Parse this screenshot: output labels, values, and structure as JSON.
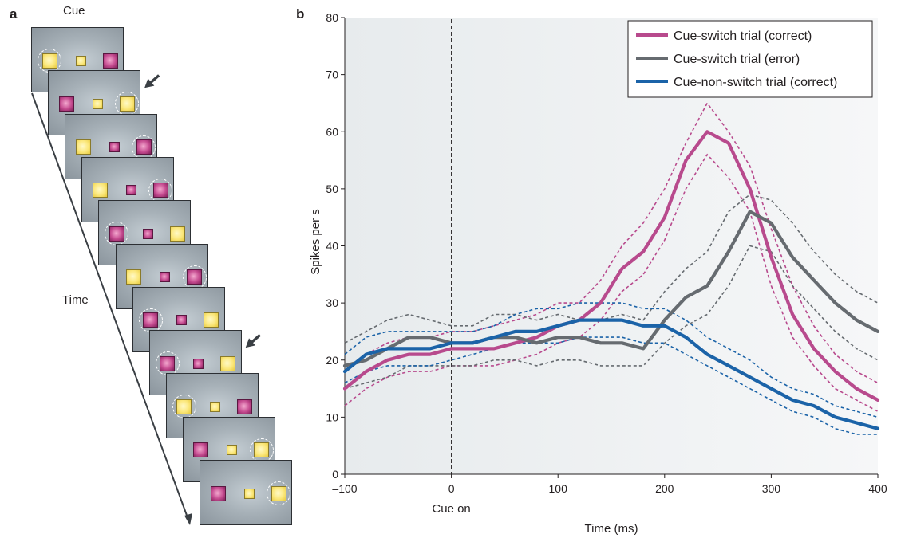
{
  "panel_a": {
    "label": "a",
    "cue_label": "Cue",
    "time_label": "Time",
    "frames": [
      {
        "squares": [
          "yellow-large",
          "yellow-small",
          "magenta-large"
        ],
        "ring": 0,
        "arrow": false
      },
      {
        "squares": [
          "magenta-large",
          "yellow-small",
          "yellow-large"
        ],
        "ring": 2,
        "arrow": true
      },
      {
        "squares": [
          "yellow-large",
          "magenta-small",
          "magenta-large"
        ],
        "ring": 2,
        "arrow": false
      },
      {
        "squares": [
          "yellow-large",
          "magenta-small",
          "magenta-large"
        ],
        "ring": 2,
        "arrow": false
      },
      {
        "squares": [
          "magenta-large",
          "magenta-small",
          "yellow-large"
        ],
        "ring": 0,
        "arrow": false
      },
      {
        "squares": [
          "yellow-large",
          "magenta-small",
          "magenta-large"
        ],
        "ring": 2,
        "arrow": false
      },
      {
        "squares": [
          "magenta-large",
          "magenta-small",
          "yellow-large"
        ],
        "ring": 0,
        "arrow": false
      },
      {
        "squares": [
          "magenta-large",
          "magenta-small",
          "yellow-large"
        ],
        "ring": 0,
        "arrow": true
      },
      {
        "squares": [
          "yellow-large",
          "yellow-small",
          "magenta-large"
        ],
        "ring": 0,
        "arrow": false
      },
      {
        "squares": [
          "magenta-large",
          "yellow-small",
          "yellow-large"
        ],
        "ring": 2,
        "arrow": false
      },
      {
        "squares": [
          "magenta-large",
          "yellow-small",
          "yellow-large"
        ],
        "ring": 2,
        "arrow": false
      }
    ]
  },
  "panel_b": {
    "label": "b"
  },
  "chart_data": {
    "type": "line",
    "title": "",
    "xlabel": "Time (ms)",
    "ylabel": "Spikes per s",
    "xlim": [
      -100,
      400
    ],
    "ylim": [
      0,
      80
    ],
    "xticks": [
      -100,
      0,
      100,
      200,
      300,
      400
    ],
    "xtick_labels": [
      "–100",
      "0",
      "100",
      "200",
      "300",
      "400"
    ],
    "yticks": [
      0,
      10,
      20,
      30,
      40,
      50,
      60,
      70,
      80
    ],
    "annotation": "Cue on",
    "annotation_x": 0,
    "legend_position": "top-right",
    "colors": {
      "switch_correct": "#b84a8d",
      "switch_error": "#666b70",
      "nonswitch_correct": "#1b63a8"
    },
    "x": [
      -100,
      -80,
      -60,
      -40,
      -20,
      0,
      20,
      40,
      60,
      80,
      100,
      120,
      140,
      160,
      180,
      200,
      220,
      240,
      260,
      280,
      300,
      320,
      340,
      360,
      380,
      400
    ],
    "series": [
      {
        "name": "Cue-switch trial (correct)",
        "color": "#b84a8d",
        "values": [
          15,
          18,
          20,
          21,
          21,
          22,
          22,
          22,
          23,
          24,
          26,
          27,
          30,
          36,
          39,
          45,
          55,
          60,
          58,
          50,
          38,
          28,
          22,
          18,
          15,
          13
        ],
        "upper": [
          18,
          21,
          23,
          24,
          24,
          25,
          25,
          26,
          27,
          28,
          30,
          30,
          34,
          40,
          44,
          50,
          58,
          65,
          60,
          54,
          43,
          33,
          26,
          21,
          18,
          16
        ],
        "lower": [
          12,
          15,
          17,
          18,
          18,
          19,
          19,
          19,
          20,
          21,
          23,
          24,
          27,
          32,
          35,
          41,
          50,
          56,
          52,
          46,
          33,
          24,
          19,
          15,
          13,
          11
        ]
      },
      {
        "name": "Cue-switch trial (error)",
        "color": "#666b70",
        "values": [
          19,
          20,
          22,
          24,
          24,
          23,
          23,
          24,
          24,
          23,
          24,
          24,
          23,
          23,
          22,
          27,
          31,
          33,
          39,
          46,
          44,
          38,
          34,
          30,
          27,
          25
        ],
        "upper": [
          23,
          25,
          27,
          28,
          27,
          26,
          26,
          28,
          28,
          27,
          28,
          27,
          27,
          28,
          27,
          32,
          36,
          39,
          46,
          49,
          48,
          44,
          39,
          35,
          32,
          30
        ],
        "lower": [
          15,
          16,
          17,
          19,
          19,
          19,
          19,
          20,
          20,
          19,
          20,
          20,
          19,
          19,
          19,
          23,
          26,
          28,
          33,
          40,
          39,
          33,
          29,
          25,
          22,
          20
        ]
      },
      {
        "name": "Cue-non-switch trial (correct)",
        "color": "#1b63a8",
        "values": [
          18,
          21,
          22,
          22,
          22,
          23,
          23,
          24,
          25,
          25,
          26,
          27,
          27,
          27,
          26,
          26,
          24,
          21,
          19,
          17,
          15,
          13,
          12,
          10,
          9,
          8
        ],
        "upper": [
          21,
          24,
          25,
          25,
          25,
          25,
          25,
          26,
          28,
          29,
          29,
          30,
          30,
          30,
          29,
          29,
          27,
          24,
          22,
          20,
          17,
          15,
          14,
          12,
          11,
          10
        ],
        "lower": [
          16,
          18,
          19,
          19,
          19,
          20,
          21,
          22,
          23,
          23,
          23,
          24,
          24,
          24,
          23,
          23,
          21,
          19,
          17,
          15,
          13,
          11,
          10,
          8,
          7,
          7
        ]
      }
    ]
  }
}
